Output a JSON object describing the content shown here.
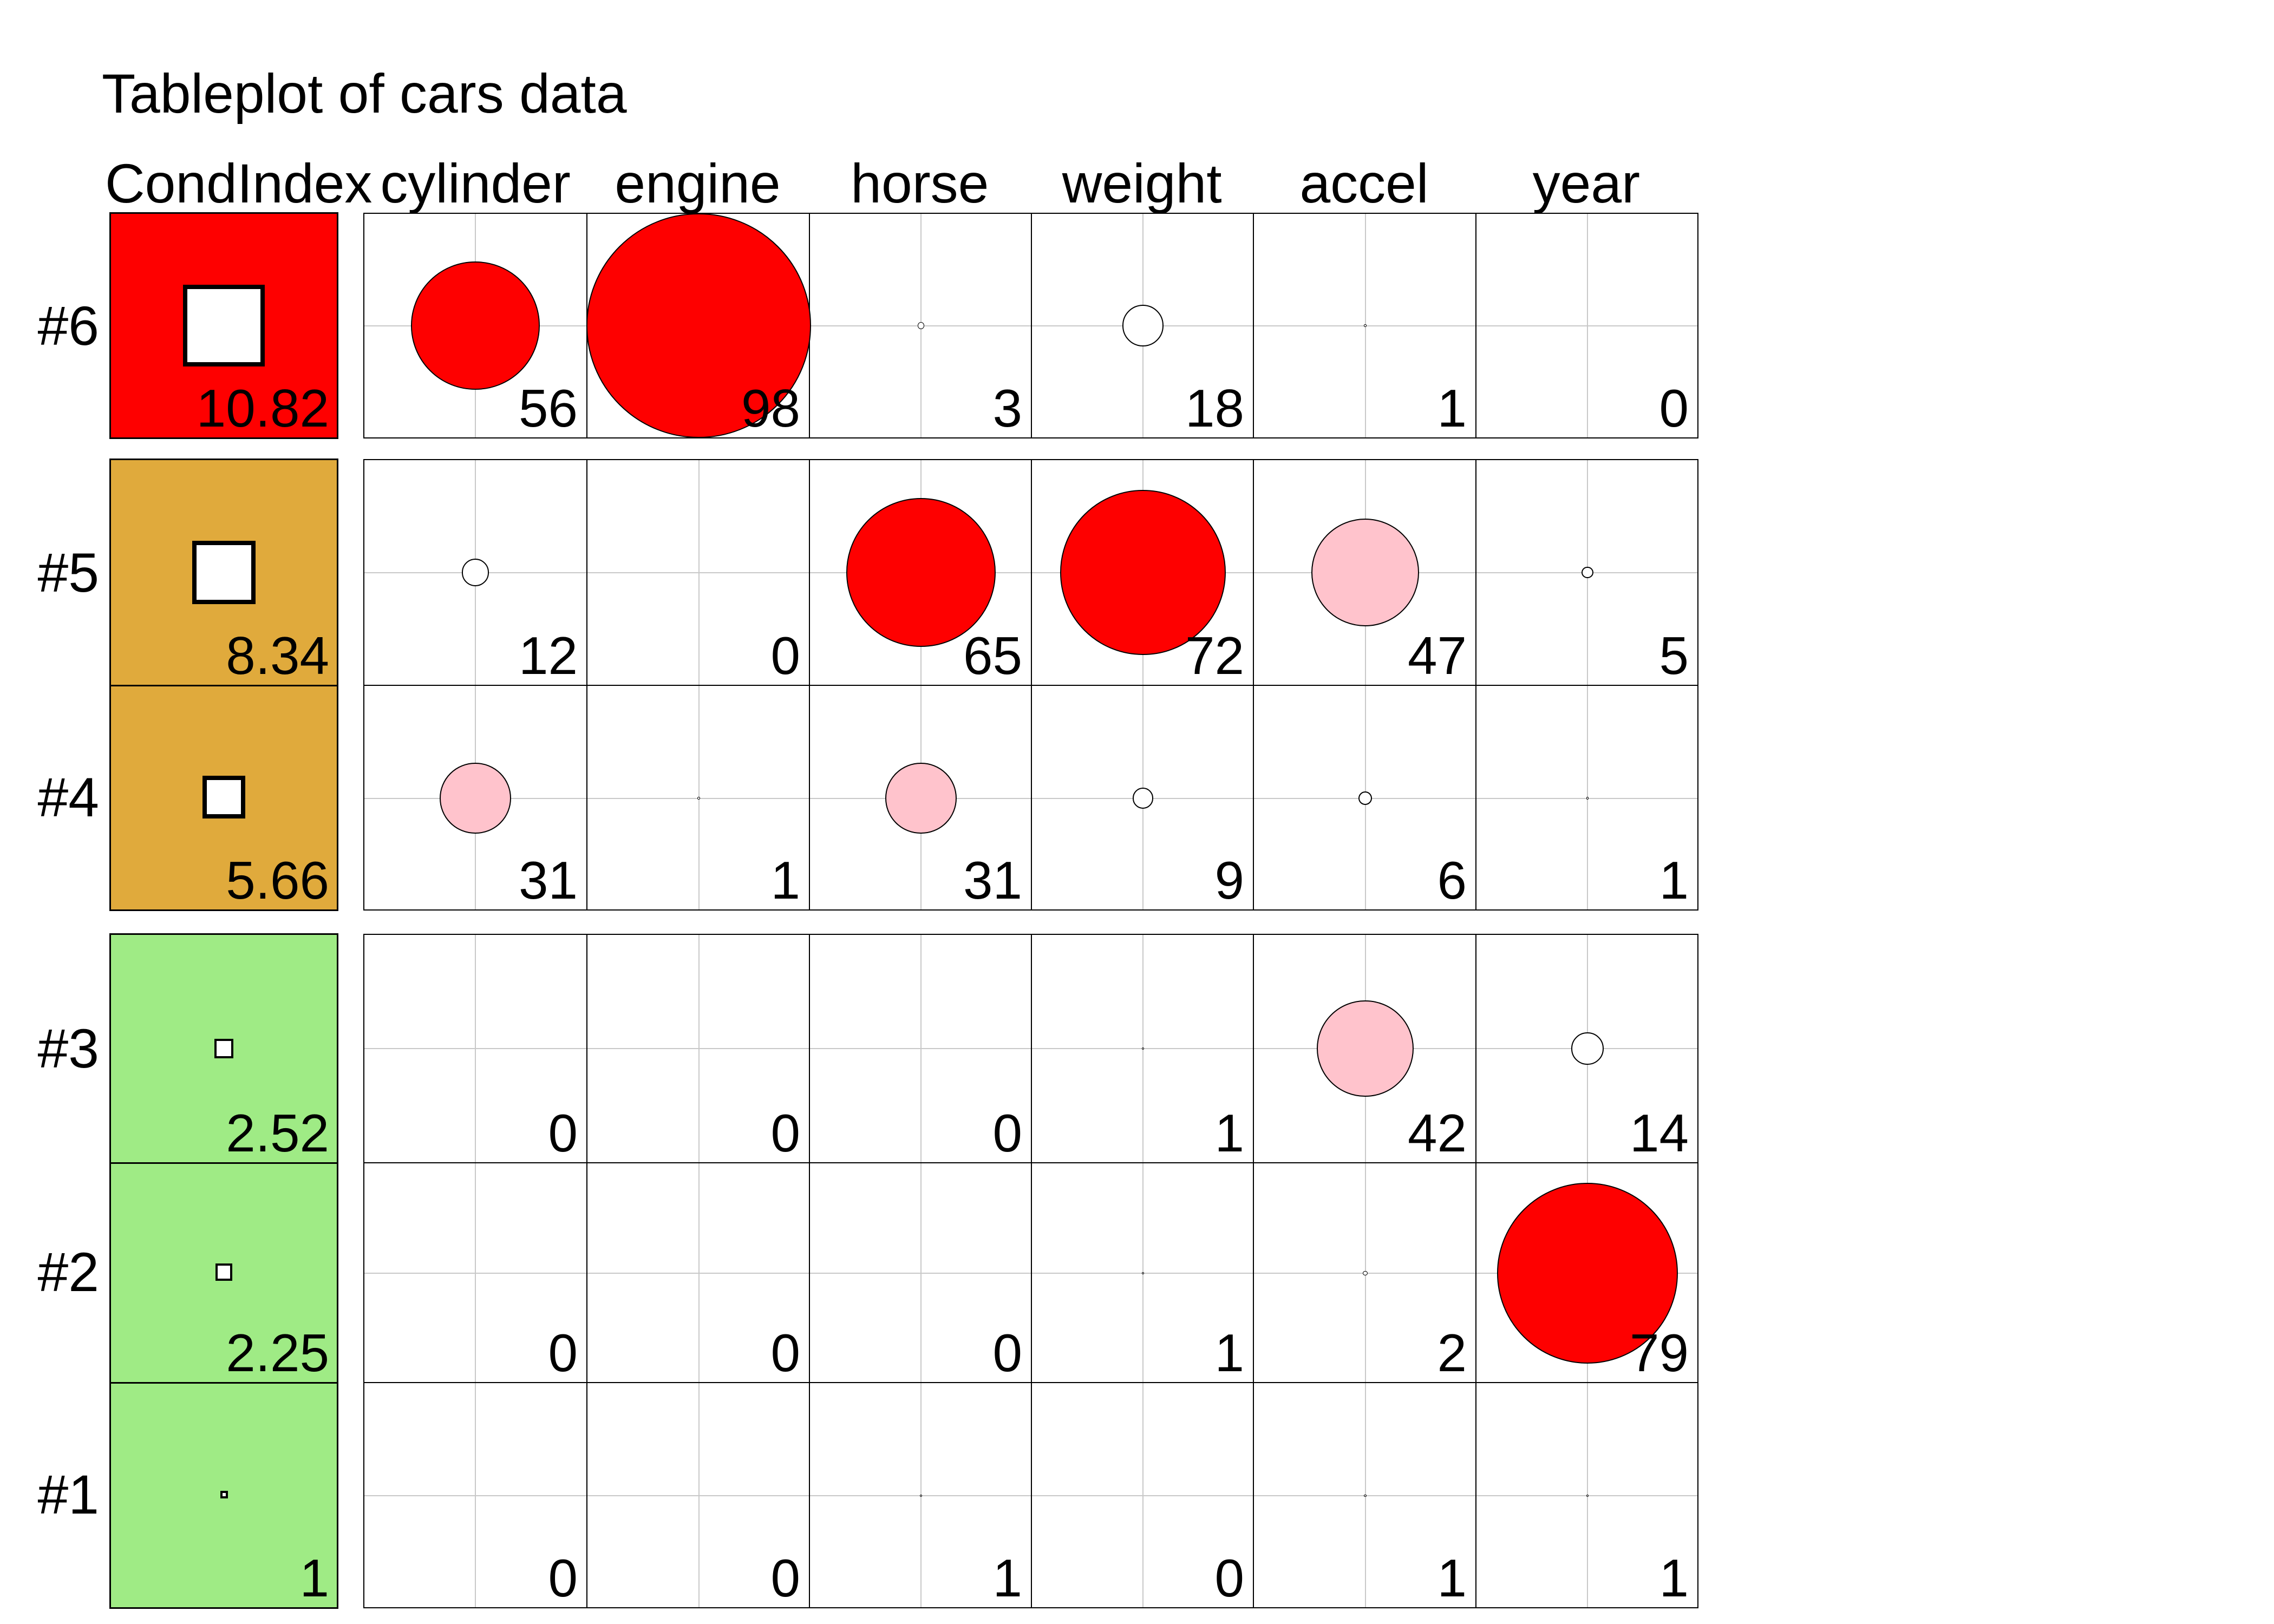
{
  "title": "Tableplot of cars data",
  "columns": [
    "CondIndex",
    "cylinder",
    "engine",
    "horse",
    "weight",
    "accel",
    "year"
  ],
  "row_labels": [
    "#6",
    "#5",
    "#4",
    "#3",
    "#2",
    "#1"
  ],
  "rows": [
    {
      "label": "#6",
      "cond_index": 10.82,
      "cond_display": "10.82",
      "severity": "high",
      "values": [
        56,
        98,
        3,
        18,
        1,
        0
      ]
    },
    {
      "label": "#5",
      "cond_index": 8.34,
      "cond_display": "8.34",
      "severity": "medium",
      "values": [
        12,
        0,
        65,
        72,
        47,
        5
      ]
    },
    {
      "label": "#4",
      "cond_index": 5.66,
      "cond_display": "5.66",
      "severity": "medium",
      "values": [
        31,
        1,
        31,
        9,
        6,
        1
      ]
    },
    {
      "label": "#3",
      "cond_index": 2.52,
      "cond_display": "2.52",
      "severity": "low",
      "values": [
        0,
        0,
        0,
        1,
        42,
        14
      ]
    },
    {
      "label": "#2",
      "cond_index": 2.25,
      "cond_display": "2.25",
      "severity": "low",
      "values": [
        0,
        0,
        0,
        1,
        2,
        79
      ]
    },
    {
      "label": "#1",
      "cond_index": 1,
      "cond_display": "1",
      "severity": "low",
      "values": [
        0,
        0,
        1,
        0,
        1,
        1
      ]
    }
  ],
  "row_groups": [
    [
      "#6"
    ],
    [
      "#5",
      "#4"
    ],
    [
      "#3",
      "#2",
      "#1"
    ]
  ],
  "colors": {
    "severity_high": "#FE0000",
    "severity_medium": "#E0AA3C",
    "severity_low": "#9FEB85",
    "bubble_large": "#FE0000",
    "bubble_medium": "#FFC3CC",
    "bubble_small": "#FFFFFF",
    "bubble_outline": "#000000",
    "gridline": "#C8C8C8"
  },
  "legend_thresholds": {
    "red_min": 50,
    "pink_min": 20
  },
  "chart_data": {
    "type": "table",
    "title": "Tableplot of cars data",
    "columns": [
      "CondIndex",
      "cylinder",
      "engine",
      "horse",
      "weight",
      "accel",
      "year"
    ],
    "rows": [
      "#6",
      "#5",
      "#4",
      "#3",
      "#2",
      "#1"
    ],
    "cond_index": [
      10.82,
      8.34,
      5.66,
      2.52,
      2.25,
      1
    ],
    "variance_proportions_pct": {
      "#6": {
        "cylinder": 56,
        "engine": 98,
        "horse": 3,
        "weight": 18,
        "accel": 1,
        "year": 0
      },
      "#5": {
        "cylinder": 12,
        "engine": 0,
        "horse": 65,
        "weight": 72,
        "accel": 47,
        "year": 5
      },
      "#4": {
        "cylinder": 31,
        "engine": 1,
        "horse": 31,
        "weight": 9,
        "accel": 6,
        "year": 1
      },
      "#3": {
        "cylinder": 0,
        "engine": 0,
        "horse": 0,
        "weight": 1,
        "accel": 42,
        "year": 14
      },
      "#2": {
        "cylinder": 0,
        "engine": 0,
        "horse": 0,
        "weight": 1,
        "accel": 2,
        "year": 79
      },
      "#1": {
        "cylinder": 0,
        "engine": 0,
        "horse": 1,
        "weight": 0,
        "accel": 1,
        "year": 1
      }
    },
    "row_groups": [
      [
        "#6"
      ],
      [
        "#5",
        "#4"
      ],
      [
        "#3",
        "#2",
        "#1"
      ]
    ],
    "encoding": {
      "circle": "radius proportional to variance proportion (percent), centered on gray cell crosshairs",
      "circle_fill": "red if value >= 50, pink if 20-49, white if 1-19, none if 0",
      "cond_index_cell": "fill red (high), goldenrod (medium), green (low); white square side proportional to condition index; value printed bottom-right",
      "legend_position": "none",
      "grid": "light gray center lines in every data cell"
    }
  }
}
